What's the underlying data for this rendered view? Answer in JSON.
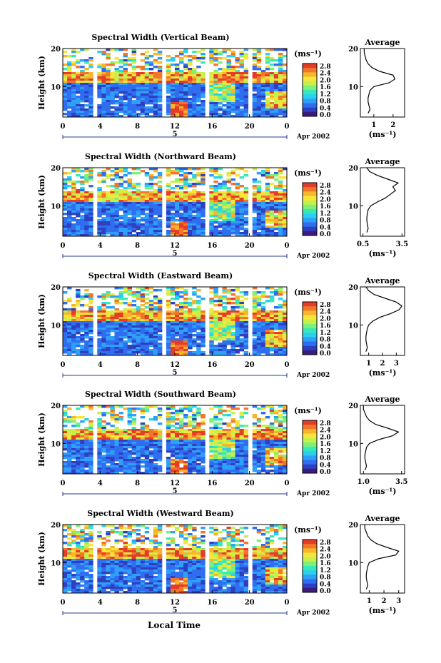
{
  "figure": {
    "xlabel": "Local Time",
    "date_label": "Apr 2002",
    "day_marker": "5"
  },
  "colorbar": {
    "unit_label": "(ms⁻¹)",
    "ticks": [
      "2.8",
      "2.4",
      "2.0",
      "1.6",
      "1.2",
      "0.8",
      "0.4",
      "0.0"
    ],
    "colors": [
      "#3b1c7d",
      "#2e3fbf",
      "#2f6ef0",
      "#2fa0f7",
      "#29d0f0",
      "#39e8b8",
      "#7df07a",
      "#c8f04a",
      "#f6e63a",
      "#f7b52e",
      "#f2762a",
      "#e53c28"
    ]
  },
  "chart_data": [
    {
      "type": "heatmap",
      "title": "Spectral Width (Vertical Beam)",
      "ylabel": "Height (km)",
      "x_ticks": [
        "0",
        "4",
        "8",
        "12",
        "16",
        "20",
        "0"
      ],
      "xlim": [
        0,
        24
      ],
      "y_ticks": [
        "20",
        "10"
      ],
      "ylim": [
        2,
        20
      ],
      "z_range": [
        0.0,
        2.8
      ],
      "profile": {
        "title": "Average",
        "xlabel": "(ms⁻¹)",
        "x_ticks": [
          "1",
          "2"
        ],
        "xlim": [
          0.3,
          2.6
        ],
        "y_ticks": [
          "20",
          "10"
        ],
        "heights": [
          3,
          4,
          5,
          6,
          7,
          8,
          9,
          10,
          11,
          12,
          13,
          14,
          15,
          16,
          17,
          18,
          19,
          20
        ],
        "values": [
          0.7,
          0.8,
          0.75,
          0.7,
          0.7,
          0.75,
          0.8,
          1.0,
          1.8,
          2.1,
          2.0,
          1.3,
          0.9,
          0.7,
          0.6,
          0.55,
          0.5,
          0.5
        ]
      }
    },
    {
      "type": "heatmap",
      "title": "Spectral Width (Northward Beam)",
      "ylabel": "Height (km)",
      "x_ticks": [
        "0",
        "4",
        "8",
        "12",
        "16",
        "20",
        "0"
      ],
      "xlim": [
        0,
        24
      ],
      "y_ticks": [
        "20",
        "10"
      ],
      "ylim": [
        2,
        20
      ],
      "z_range": [
        0.0,
        2.8
      ],
      "profile": {
        "title": "Average",
        "xlabel": "(ms⁻¹)",
        "x_ticks": [
          "0.5",
          "3.5"
        ],
        "xlim": [
          0.3,
          3.7
        ],
        "y_ticks": [
          "20",
          "10"
        ],
        "heights": [
          3,
          4,
          5,
          6,
          7,
          8,
          9,
          10,
          11,
          12,
          13,
          14,
          15,
          16,
          17,
          18,
          19,
          20
        ],
        "values": [
          0.8,
          0.9,
          0.85,
          0.8,
          0.8,
          0.85,
          0.9,
          1.1,
          1.6,
          2.2,
          2.6,
          3.0,
          2.8,
          3.2,
          2.4,
          1.6,
          1.0,
          0.8
        ]
      }
    },
    {
      "type": "heatmap",
      "title": "Spectral Width (Eastward Beam)",
      "ylabel": "Height (km)",
      "x_ticks": [
        "0",
        "4",
        "8",
        "12",
        "16",
        "20",
        "0"
      ],
      "xlim": [
        0,
        24
      ],
      "y_ticks": [
        "20",
        "10"
      ],
      "ylim": [
        2,
        20
      ],
      "z_range": [
        0.0,
        2.8
      ],
      "profile": {
        "title": "Average",
        "xlabel": "(ms⁻¹)",
        "x_ticks": [
          "1",
          "2",
          "3"
        ],
        "xlim": [
          0.4,
          3.6
        ],
        "y_ticks": [
          "20",
          "10"
        ],
        "heights": [
          3,
          4,
          5,
          6,
          7,
          8,
          9,
          10,
          11,
          12,
          13,
          14,
          15,
          16,
          17,
          18,
          19,
          20
        ],
        "values": [
          0.8,
          0.9,
          0.85,
          0.8,
          0.8,
          0.85,
          0.9,
          1.0,
          1.3,
          1.8,
          2.6,
          3.2,
          3.4,
          3.0,
          2.2,
          1.4,
          1.0,
          0.8
        ]
      }
    },
    {
      "type": "heatmap",
      "title": "Spectral Width (Southward Beam)",
      "ylabel": "Height (km)",
      "x_ticks": [
        "0",
        "4",
        "8",
        "12",
        "16",
        "20",
        "0"
      ],
      "xlim": [
        0,
        24
      ],
      "y_ticks": [
        "20",
        "10"
      ],
      "ylim": [
        2,
        20
      ],
      "z_range": [
        0.0,
        2.8
      ],
      "profile": {
        "title": "Average",
        "xlabel": "(ms⁻¹)",
        "x_ticks": [
          "1.0",
          "3.5"
        ],
        "xlim": [
          0.8,
          3.7
        ],
        "y_ticks": [
          "20",
          "10"
        ],
        "heights": [
          3,
          4,
          5,
          6,
          7,
          8,
          9,
          10,
          11,
          12,
          13,
          14,
          15,
          16,
          17,
          18,
          19,
          20
        ],
        "values": [
          1.1,
          1.2,
          1.15,
          1.1,
          1.1,
          1.15,
          1.2,
          1.4,
          2.0,
          2.9,
          3.3,
          2.6,
          1.8,
          1.4,
          1.2,
          1.1,
          1.0,
          1.0
        ]
      }
    },
    {
      "type": "heatmap",
      "title": "Spectral Width (Westward Beam)",
      "ylabel": "Height (km)",
      "x_ticks": [
        "0",
        "4",
        "8",
        "12",
        "16",
        "20",
        "0"
      ],
      "xlim": [
        0,
        24
      ],
      "y_ticks": [
        "20",
        "10"
      ],
      "ylim": [
        2,
        20
      ],
      "z_range": [
        0.0,
        2.8
      ],
      "profile": {
        "title": "Average",
        "xlabel": "(ms⁻¹)",
        "x_ticks": [
          "1",
          "2",
          "3"
        ],
        "xlim": [
          0.4,
          3.4
        ],
        "y_ticks": [
          "20",
          "10"
        ],
        "heights": [
          3,
          4,
          5,
          6,
          7,
          8,
          9,
          10,
          11,
          12,
          13,
          14,
          15,
          16,
          17,
          18,
          19,
          20
        ],
        "values": [
          0.8,
          0.9,
          0.85,
          0.8,
          0.8,
          0.85,
          0.9,
          1.0,
          1.6,
          2.8,
          3.0,
          2.2,
          1.5,
          1.1,
          0.9,
          0.8,
          0.7,
          0.7
        ]
      }
    }
  ]
}
